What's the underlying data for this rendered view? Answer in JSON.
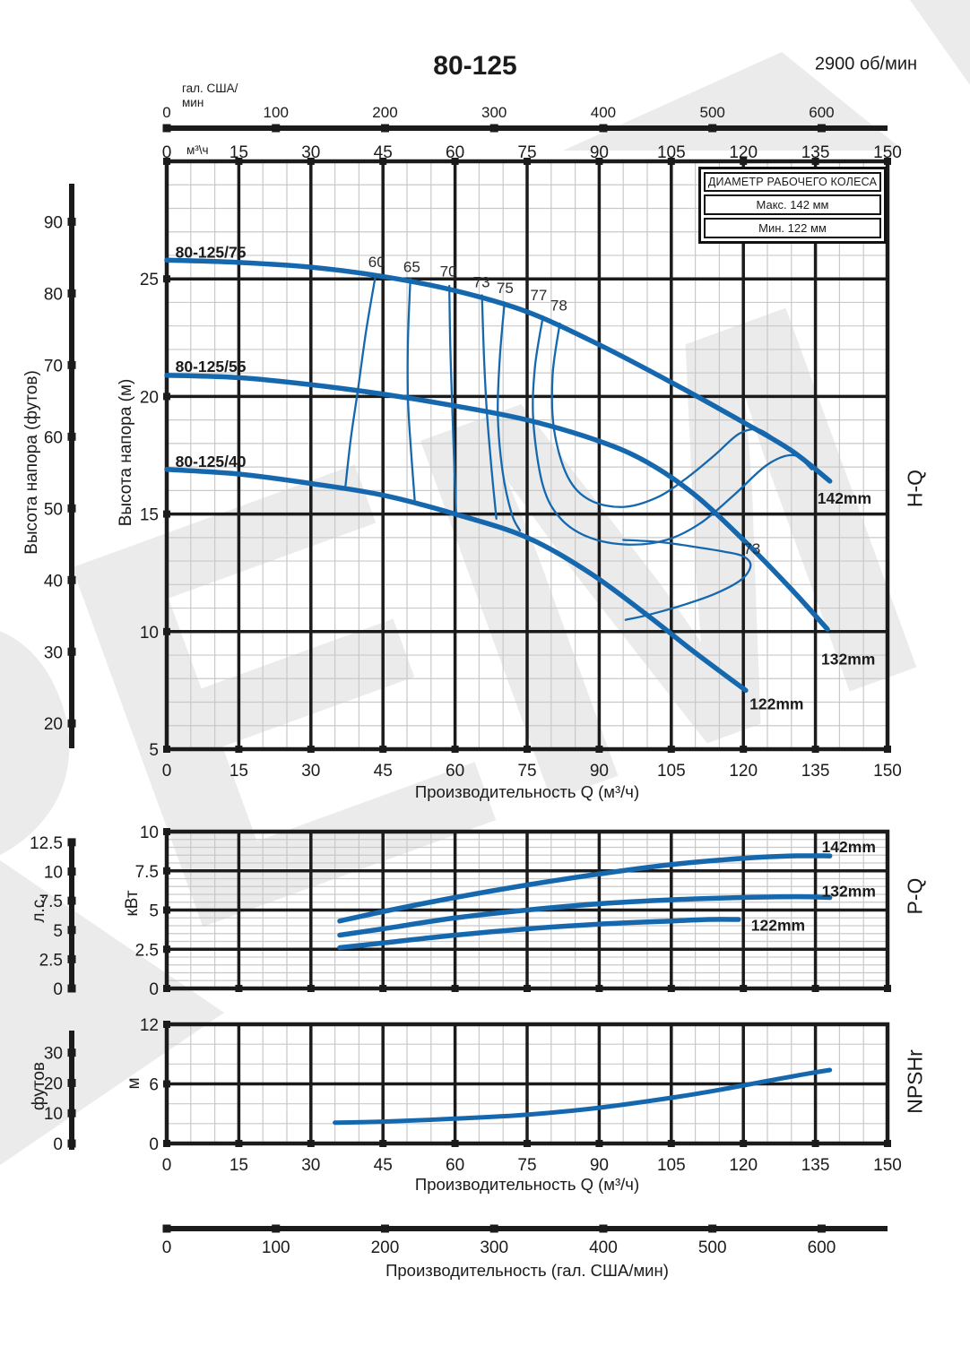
{
  "header": {
    "title": "80-125",
    "rpm": "2900 об/мин"
  },
  "legend": {
    "title": "ДИАМЕТР РАБОЧЕГО КОЛЕСА",
    "max": "Макс. 142 мм",
    "min": "Мин. 122 мм"
  },
  "section_labels": {
    "hq": "H-Q",
    "pq": "P-Q",
    "npshr": "NPSHr"
  },
  "axes": {
    "top_gal": {
      "unit": "гал. США/\nмин",
      "ticks": [
        0,
        100,
        200,
        300,
        400,
        500,
        600
      ]
    },
    "top_m3h": {
      "unit": "м³\\ч",
      "ticks": [
        0,
        15,
        30,
        45,
        60,
        75,
        90,
        105,
        120,
        135,
        150
      ]
    },
    "head_m": {
      "unit": "Высота напора (м)",
      "ticks": [
        5,
        10,
        15,
        20,
        25
      ]
    },
    "head_ft": {
      "unit": "Высота напора (футов)",
      "ticks": [
        20,
        30,
        40,
        50,
        60,
        70,
        80,
        90
      ]
    },
    "bottom_m3h_main": {
      "title": "Производительность Q (м³/ч)"
    },
    "power_kw": {
      "unit": "кВт",
      "ticks": [
        0,
        2.5,
        5,
        7.5,
        10
      ]
    },
    "power_hp": {
      "unit": "л.с.",
      "ticks": [
        0,
        2.5,
        5,
        7.5,
        10,
        12.5
      ]
    },
    "npsh_m": {
      "unit": "м",
      "ticks": [
        0,
        6,
        12
      ]
    },
    "npsh_ft": {
      "unit": "футов",
      "ticks": [
        0,
        10,
        20,
        30
      ]
    },
    "bottom_m3h_npsh": {
      "title": "Производительность Q (м³/ч)"
    },
    "bottom_gal": {
      "title": "Производительность (гал. США/мин)",
      "ticks": [
        0,
        100,
        200,
        300,
        400,
        500,
        600
      ]
    }
  },
  "colors": {
    "curve": "#1668ae",
    "grid_major": "#1b1b1b",
    "grid_minor": "#c9c9c9",
    "watermark": "#ebebeb",
    "text": "#1b1b1b"
  },
  "chart_data": [
    {
      "id": "hq",
      "type": "line",
      "title": "H-Q",
      "xlabel": "Производительность Q (м³/ч)",
      "xlim": [
        0,
        150
      ],
      "x_step_major": 15,
      "ylabel": "Высота напора (м)",
      "ylim": [
        5,
        30
      ],
      "y_step_major": 5,
      "series": [
        {
          "name": "142mm",
          "model": "80-125/75",
          "points": [
            [
              0,
              25.8
            ],
            [
              15,
              25.7
            ],
            [
              30,
              25.5
            ],
            [
              45,
              25.1
            ],
            [
              60,
              24.5
            ],
            [
              75,
              23.6
            ],
            [
              90,
              22.2
            ],
            [
              105,
              20.6
            ],
            [
              120,
              18.9
            ],
            [
              130,
              17.7
            ],
            [
              138,
              16.4
            ]
          ]
        },
        {
          "name": "132mm",
          "model": "80-125/55",
          "points": [
            [
              0,
              20.9
            ],
            [
              15,
              20.8
            ],
            [
              30,
              20.5
            ],
            [
              45,
              20.1
            ],
            [
              60,
              19.6
            ],
            [
              75,
              19.0
            ],
            [
              90,
              18.1
            ],
            [
              100,
              17.2
            ],
            [
              110,
              15.8
            ],
            [
              120,
              13.9
            ],
            [
              130,
              11.8
            ],
            [
              137.5,
              10.1
            ]
          ]
        },
        {
          "name": "122mm",
          "model": "80-125/40",
          "points": [
            [
              0,
              16.9
            ],
            [
              15,
              16.7
            ],
            [
              30,
              16.3
            ],
            [
              45,
              15.8
            ],
            [
              60,
              15.0
            ],
            [
              75,
              14.0
            ],
            [
              88,
              12.5
            ],
            [
              100,
              10.7
            ],
            [
              110,
              9.1
            ],
            [
              120.5,
              7.5
            ]
          ]
        }
      ],
      "efficiency_contours": [
        {
          "label": "60",
          "points": [
            [
              43.5,
              25.2
            ],
            [
              41.5,
              22.8
            ],
            [
              39.8,
              20.3
            ],
            [
              38.3,
              18.2
            ],
            [
              37.2,
              16.2
            ]
          ]
        },
        {
          "label": "65",
          "points": [
            [
              50.7,
              25.0
            ],
            [
              50.2,
              22.4
            ],
            [
              50.2,
              19.9
            ],
            [
              50.8,
              17.8
            ],
            [
              51.6,
              15.6
            ]
          ]
        },
        {
          "label": "70",
          "points": [
            [
              58.8,
              24.7
            ],
            [
              59.0,
              22.2
            ],
            [
              59.4,
              19.6
            ],
            [
              59.8,
              17.3
            ],
            [
              60.2,
              15.1
            ]
          ]
        },
        {
          "label": "73",
          "points": [
            [
              65.6,
              24.3
            ],
            [
              66.0,
              21.8
            ],
            [
              66.6,
              19.4
            ],
            [
              67.6,
              16.9
            ],
            [
              68.6,
              14.8
            ]
          ]
        },
        {
          "label": "75",
          "points": [
            [
              70.3,
              24.0
            ],
            [
              69.3,
              21.6
            ],
            [
              68.9,
              19.2
            ],
            [
              69.9,
              16.8
            ],
            [
              71.8,
              15.0
            ],
            [
              73.5,
              14.3
            ]
          ]
        },
        {
          "label": "77",
          "points": [
            [
              78.3,
              23.4
            ],
            [
              76.6,
              21.2
            ],
            [
              76.3,
              18.9
            ],
            [
              78.3,
              16.2
            ],
            [
              82,
              14.8
            ],
            [
              88,
              14.0
            ],
            [
              96,
              13.7
            ],
            [
              104,
              13.9
            ],
            [
              111,
              14.6
            ],
            [
              118,
              15.8
            ],
            [
              125,
              17.1
            ],
            [
              130.5,
              17.5
            ],
            [
              134.2,
              16.9
            ]
          ]
        },
        {
          "label": "78",
          "points": [
            [
              81.8,
              23.1
            ],
            [
              80.3,
              20.9
            ],
            [
              80.6,
              18.6
            ],
            [
              83.4,
              16.6
            ],
            [
              88,
              15.6
            ],
            [
              95,
              15.3
            ],
            [
              102,
              15.7
            ],
            [
              108,
              16.5
            ],
            [
              114,
              17.5
            ],
            [
              119,
              18.4
            ],
            [
              123,
              18.6
            ],
            [
              126.5,
              18.2
            ]
          ]
        },
        {
          "label": "73",
          "points": [
            [
              95,
              13.9
            ],
            [
              103,
              13.8
            ],
            [
              110,
              13.6
            ],
            [
              116,
              13.4
            ],
            [
              120,
              13.2
            ],
            [
              121.5,
              12.8
            ],
            [
              119.5,
              12.2
            ],
            [
              114,
              11.6
            ],
            [
              107,
              11.1
            ],
            [
              100,
              10.7
            ],
            [
              95.5,
              10.5
            ]
          ]
        }
      ],
      "curve_labels": [
        {
          "text": "80-125/75",
          "q": 1.8,
          "h": 25.9
        },
        {
          "text": "80-125/55",
          "q": 1.8,
          "h": 21.05
        },
        {
          "text": "80-125/40",
          "q": 1.8,
          "h": 17.0
        },
        {
          "text": "142mm",
          "q": 135.4,
          "h": 15.45
        },
        {
          "text": "132mm",
          "q": 136.2,
          "h": 8.6
        },
        {
          "text": "122mm",
          "q": 121.3,
          "h": 6.7
        }
      ],
      "efficiency_labels": [
        {
          "text": "60",
          "q": 43.7,
          "h": 25.5
        },
        {
          "text": "65",
          "q": 51.0,
          "h": 25.3
        },
        {
          "text": "70",
          "q": 58.6,
          "h": 25.1
        },
        {
          "text": "73",
          "q": 65.5,
          "h": 24.65
        },
        {
          "text": "75",
          "q": 70.4,
          "h": 24.4
        },
        {
          "text": "77",
          "q": 77.4,
          "h": 24.1
        },
        {
          "text": "78",
          "q": 81.6,
          "h": 23.65
        },
        {
          "text": "73",
          "q": 121.8,
          "h": 13.3
        }
      ]
    },
    {
      "id": "pq",
      "type": "line",
      "title": "P-Q",
      "ylabel": "кВт",
      "ylim": [
        0,
        10
      ],
      "series": [
        {
          "name": "142mm",
          "points": [
            [
              36,
              4.3
            ],
            [
              45,
              4.9
            ],
            [
              60,
              5.8
            ],
            [
              75,
              6.6
            ],
            [
              90,
              7.3
            ],
            [
              105,
              7.9
            ],
            [
              120,
              8.3
            ],
            [
              130,
              8.45
            ],
            [
              138,
              8.45
            ]
          ]
        },
        {
          "name": "132mm",
          "points": [
            [
              36,
              3.4
            ],
            [
              45,
              3.8
            ],
            [
              60,
              4.5
            ],
            [
              75,
              5.0
            ],
            [
              90,
              5.4
            ],
            [
              105,
              5.65
            ],
            [
              120,
              5.8
            ],
            [
              131,
              5.85
            ],
            [
              138,
              5.8
            ]
          ]
        },
        {
          "name": "122mm",
          "points": [
            [
              36,
              2.6
            ],
            [
              45,
              2.9
            ],
            [
              60,
              3.4
            ],
            [
              75,
              3.8
            ],
            [
              90,
              4.1
            ],
            [
              105,
              4.3
            ],
            [
              113,
              4.4
            ],
            [
              119,
              4.4
            ]
          ]
        }
      ],
      "curve_labels": [
        {
          "text": "142mm",
          "q": 136.3,
          "p": 8.7
        },
        {
          "text": "132mm",
          "q": 136.3,
          "p": 5.85
        },
        {
          "text": "122mm",
          "q": 121.6,
          "p": 3.7
        }
      ]
    },
    {
      "id": "npshr",
      "type": "line",
      "title": "NPSHr",
      "ylabel": "м",
      "ylim": [
        0,
        12
      ],
      "series": [
        {
          "name": "NPSHr",
          "points": [
            [
              35,
              2.1
            ],
            [
              45,
              2.2
            ],
            [
              60,
              2.5
            ],
            [
              75,
              2.9
            ],
            [
              90,
              3.6
            ],
            [
              105,
              4.6
            ],
            [
              115,
              5.4
            ],
            [
              125,
              6.3
            ],
            [
              133,
              7.0
            ],
            [
              138,
              7.4
            ]
          ]
        }
      ]
    }
  ]
}
